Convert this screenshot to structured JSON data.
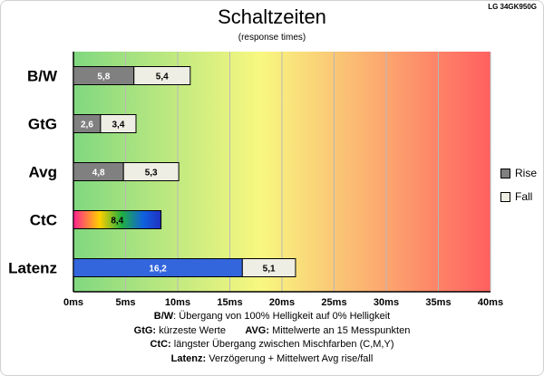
{
  "model": "LG 34GK950G",
  "chart_data": {
    "type": "bar",
    "orientation": "horizontal",
    "stacked": true,
    "title": "Schaltzeiten",
    "subtitle": "(response times)",
    "categories": [
      "B/W",
      "GtG",
      "Avg",
      "CtC",
      "Latenz"
    ],
    "series": [
      {
        "name": "Rise",
        "color": "#808080",
        "values": [
          5.8,
          2.6,
          4.8,
          null,
          null
        ]
      },
      {
        "name": "Fall",
        "color": "#eeeee4",
        "values": [
          5.4,
          3.4,
          5.3,
          null,
          5.1
        ]
      }
    ],
    "extra_bars": [
      {
        "category": "CtC",
        "value": 8.4,
        "label": "8,4",
        "fill": "rainbow"
      },
      {
        "category": "Latenz",
        "value": 16.2,
        "label": "16,2",
        "fill": "#3366dd"
      }
    ],
    "value_labels": {
      "Rise": [
        "5,8",
        "2,6",
        "4,8",
        "",
        ""
      ],
      "Fall": [
        "5,4",
        "3,4",
        "5,3",
        "",
        "5,1"
      ]
    },
    "xlim": [
      0,
      40
    ],
    "x_ticks": [
      0,
      5,
      10,
      15,
      20,
      25,
      30,
      35,
      40
    ],
    "x_tick_labels": [
      "0ms",
      "5ms",
      "10ms",
      "15ms",
      "20ms",
      "25ms",
      "30ms",
      "35ms",
      "40ms"
    ],
    "background_gradient": [
      "#80d880",
      "#f8f880",
      "#ff6060"
    ],
    "legend_position": "right",
    "grid": true
  },
  "legend": {
    "rise": "Rise",
    "fall": "Fall"
  },
  "notes": [
    {
      "key": "B/W",
      "text": ":  Übergang von 100% Helligkeit auf 0% Helligkeit"
    },
    {
      "key": "GtG:",
      "text": " kürzeste  Werte",
      "key2": "AVG:",
      "text2": " Mittelwerte  an 15 Messpunkten"
    },
    {
      "key": "CtC:",
      "text": " längster Übergang  zwischen Mischfarben  (C,M,Y)"
    },
    {
      "key": "Latenz:",
      "text": " Verzögerung  + Mittelwert Avg rise/fall"
    }
  ]
}
